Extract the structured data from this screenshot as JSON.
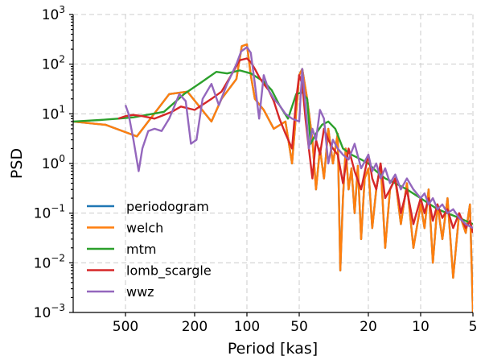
{
  "chart_data": {
    "type": "line",
    "title": "",
    "xlabel": "Period [kas]",
    "ylabel": "PSD",
    "xscale": "log",
    "yscale": "log",
    "x_reversed": true,
    "xlim": [
      1000,
      5
    ],
    "ylim": [
      0.001,
      1000
    ],
    "grid": true,
    "legend_position": "lower-left",
    "x_ticks": [
      {
        "value": 500,
        "label": "500"
      },
      {
        "value": 200,
        "label": "200"
      },
      {
        "value": 100,
        "label": "100"
      },
      {
        "value": 50,
        "label": "50"
      },
      {
        "value": 20,
        "label": "20"
      },
      {
        "value": 10,
        "label": "10"
      },
      {
        "value": 5,
        "label": "5"
      }
    ],
    "y_ticks": [
      {
        "value": 0.001,
        "base": "10",
        "exp": "−3"
      },
      {
        "value": 0.01,
        "base": "10",
        "exp": "−2"
      },
      {
        "value": 0.1,
        "base": "10",
        "exp": "−1"
      },
      {
        "value": 1,
        "base": "10",
        "exp": "0"
      },
      {
        "value": 10,
        "base": "10",
        "exp": "1"
      },
      {
        "value": 100,
        "base": "10",
        "exp": "2"
      },
      {
        "value": 1000,
        "base": "10",
        "exp": "3"
      }
    ],
    "series": [
      {
        "name": "periodogram",
        "color": "#1f77b4",
        "x": [
          1000,
          650,
          430,
          280,
          220,
          160,
          140,
          115,
          107,
          100,
          95,
          90,
          80,
          70,
          60,
          55,
          50,
          48,
          45,
          42,
          40,
          38,
          36,
          34,
          32,
          30,
          29,
          28,
          27,
          26,
          25,
          24,
          23,
          22,
          21,
          20,
          19,
          18,
          17,
          16,
          15,
          14,
          13,
          12,
          11,
          10,
          9.5,
          9,
          8.5,
          8,
          7.5,
          7,
          6.5,
          6,
          5.5,
          5.2,
          5
        ],
        "y": [
          7,
          6,
          3.5,
          25,
          28,
          7,
          20,
          50,
          230,
          250,
          60,
          20,
          12,
          5,
          7,
          1,
          60,
          80,
          20,
          3,
          0.3,
          2,
          0.5,
          5,
          1,
          4,
          0.007,
          0.2,
          2,
          0.3,
          0.8,
          0.1,
          0.9,
          0.03,
          0.5,
          0.8,
          0.05,
          0.3,
          1,
          0.02,
          0.3,
          0.5,
          0.06,
          0.4,
          0.02,
          0.15,
          0.05,
          0.3,
          0.01,
          0.15,
          0.03,
          0.2,
          0.005,
          0.1,
          0.04,
          0.15,
          0.001
        ]
      },
      {
        "name": "welch",
        "color": "#ff7f0e",
        "x": [
          1000,
          650,
          430,
          280,
          220,
          160,
          140,
          115,
          107,
          100,
          95,
          90,
          80,
          70,
          60,
          55,
          50,
          48,
          45,
          42,
          40,
          38,
          36,
          34,
          32,
          30,
          29,
          28,
          27,
          26,
          25,
          24,
          23,
          22,
          21,
          20,
          19,
          18,
          17,
          16,
          15,
          14,
          13,
          12,
          11,
          10,
          9.5,
          9,
          8.5,
          8,
          7.5,
          7,
          6.5,
          6,
          5.5,
          5.2,
          5
        ],
        "y": [
          7,
          6,
          3.5,
          25,
          28,
          7,
          20,
          50,
          230,
          250,
          60,
          20,
          12,
          5,
          7,
          1,
          60,
          80,
          20,
          3,
          0.3,
          2,
          0.5,
          5,
          1,
          4,
          0.007,
          0.2,
          2,
          0.3,
          0.8,
          0.1,
          0.9,
          0.03,
          0.5,
          0.8,
          0.05,
          0.3,
          1,
          0.02,
          0.3,
          0.5,
          0.06,
          0.4,
          0.02,
          0.15,
          0.05,
          0.3,
          0.01,
          0.15,
          0.03,
          0.2,
          0.005,
          0.1,
          0.04,
          0.15,
          0.001
        ]
      },
      {
        "name": "mtm",
        "color": "#2ca02c",
        "x": [
          1000,
          700,
          550,
          450,
          300,
          230,
          180,
          150,
          130,
          110,
          95,
          80,
          72,
          65,
          58,
          52,
          48,
          45,
          43,
          40,
          37,
          34,
          31,
          28,
          25,
          22,
          20,
          18,
          16,
          14,
          12,
          10,
          8,
          6,
          5
        ],
        "y": [
          7,
          7.5,
          8,
          8.5,
          11,
          25,
          45,
          70,
          65,
          75,
          65,
          45,
          30,
          15,
          8,
          25,
          27,
          20,
          2.5,
          4,
          6,
          7,
          5,
          2,
          1.5,
          1.2,
          1,
          0.7,
          0.5,
          0.4,
          0.3,
          0.2,
          0.12,
          0.08,
          0.06
        ]
      },
      {
        "name": "lomb_scargle",
        "color": "#d62728",
        "x": [
          550,
          500,
          450,
          400,
          340,
          300,
          270,
          240,
          200,
          160,
          140,
          120,
          110,
          100,
          95,
          90,
          85,
          80,
          75,
          70,
          65,
          60,
          55,
          52,
          50,
          48,
          46,
          44,
          42,
          40,
          38,
          36,
          34,
          32,
          30,
          28,
          26,
          24,
          22,
          20,
          19,
          18,
          17,
          16,
          15,
          14,
          13,
          12,
          11,
          10,
          9.5,
          9,
          8.5,
          8,
          7.5,
          7,
          6.5,
          6,
          5.5,
          5.2,
          5
        ],
        "y": [
          8,
          9,
          9.5,
          9,
          8,
          9.5,
          11,
          14,
          12,
          20,
          28,
          70,
          120,
          130,
          110,
          80,
          55,
          40,
          30,
          18,
          8,
          4,
          2,
          20,
          60,
          40,
          8,
          2,
          0.5,
          3,
          1.5,
          5,
          3,
          2,
          1.5,
          0.4,
          2,
          0.7,
          0.3,
          1.5,
          0.5,
          0.3,
          1,
          0.2,
          0.3,
          0.5,
          0.1,
          0.3,
          0.06,
          0.2,
          0.1,
          0.2,
          0.07,
          0.15,
          0.08,
          0.12,
          0.05,
          0.1,
          0.05,
          0.07,
          0.04
        ]
      },
      {
        "name": "wwz",
        "color": "#9467bd",
        "x": [
          500,
          480,
          450,
          420,
          400,
          370,
          340,
          310,
          280,
          260,
          245,
          225,
          210,
          195,
          180,
          160,
          145,
          130,
          115,
          108,
          100,
          95,
          90,
          85,
          80,
          75,
          70,
          65,
          60,
          55,
          50,
          48,
          46,
          44,
          42,
          40,
          38,
          36,
          34,
          32,
          30,
          28,
          26,
          24,
          22,
          20,
          19,
          18,
          17,
          16,
          15,
          14,
          13,
          12,
          11,
          10,
          9.5,
          9,
          8.5,
          8,
          7.5,
          7,
          6.5,
          6,
          5.5,
          5
        ],
        "y": [
          15,
          10,
          3,
          0.7,
          2,
          4.5,
          5,
          4.5,
          8,
          15,
          25,
          18,
          2.5,
          3,
          20,
          40,
          15,
          40,
          100,
          180,
          220,
          170,
          40,
          8,
          60,
          30,
          20,
          15,
          10,
          8,
          7,
          80,
          15,
          2,
          5,
          3,
          12,
          8,
          1,
          3,
          2,
          1.5,
          1.2,
          2.5,
          0.8,
          1.5,
          0.7,
          1,
          0.5,
          0.8,
          0.4,
          0.6,
          0.3,
          0.5,
          0.3,
          0.2,
          0.25,
          0.15,
          0.2,
          0.12,
          0.15,
          0.1,
          0.12,
          0.08,
          0.06,
          0.05
        ]
      }
    ]
  }
}
